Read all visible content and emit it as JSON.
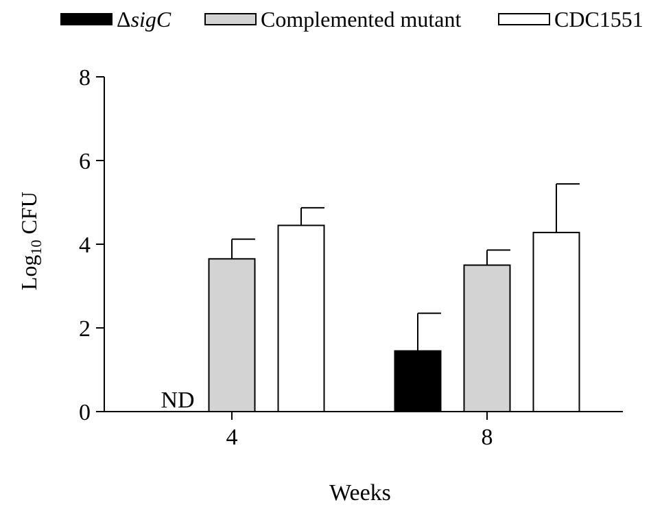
{
  "chart_data": {
    "type": "bar",
    "categories": [
      "4",
      "8"
    ],
    "series": [
      {
        "name": "ΔsigC",
        "values": [
          0,
          1.45
        ],
        "errors": [
          null,
          0.9
        ],
        "color": "#000000"
      },
      {
        "name": "Complemented mutant",
        "values": [
          3.65,
          3.5
        ],
        "errors": [
          0.47,
          0.36
        ],
        "color": "#d3d3d3"
      },
      {
        "name": "CDC1551",
        "values": [
          4.45,
          4.28
        ],
        "errors": [
          0.42,
          1.16
        ],
        "color": "#ffffff"
      }
    ],
    "annotations": [
      {
        "category": "4",
        "series": "ΔsigC",
        "text": "ND"
      }
    ],
    "xlabel": "Weeks",
    "ylabel": "Log",
    "ylabel_subscript": "10",
    "ylabel_suffix": " CFU",
    "ylim": [
      0,
      8
    ],
    "yticks": [
      0,
      2,
      4,
      6,
      8
    ],
    "grid": false,
    "legend_position": "top"
  },
  "legend": {
    "delta": "Δ",
    "sig": "sigC"
  }
}
